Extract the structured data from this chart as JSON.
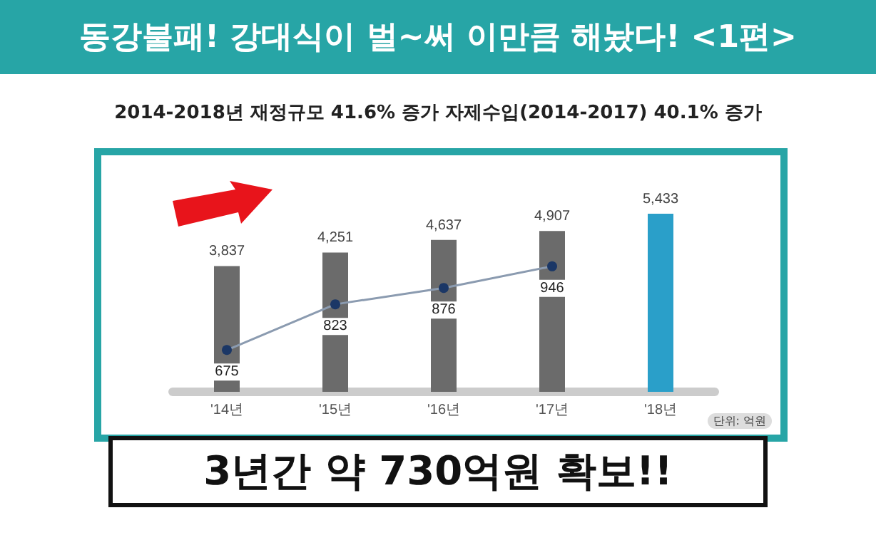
{
  "chart_data": {
    "type": "bar",
    "title": "동강불패! 강대식이 벌~써 이만큼 해놨다! <1편>",
    "subtitle": "2014-2018년 재정규모 41.6% 증가 자제수입(2014-2017) 40.1% 증가",
    "categories": [
      "'14년",
      "'15년",
      "'16년",
      "'17년",
      "'18년"
    ],
    "series": [
      {
        "colors": [
          "#6b6b6b",
          "#6b6b6b",
          "#6b6b6b",
          "#6b6b6b",
          "#2a9fc9"
        ],
        "values": [
          3837,
          4251,
          4637,
          4907,
          5433
        ],
        "value_labels": [
          "3,837",
          "4,251",
          "4,637",
          "4,907",
          "5,433"
        ]
      },
      {
        "type": "line",
        "axis": "y2",
        "color": "#1b3766",
        "values": [
          675,
          823,
          876,
          946,
          null
        ],
        "value_labels": [
          "675",
          "823",
          "876",
          "946",
          null
        ]
      }
    ],
    "tick_labels": "x",
    "marker": "circle",
    "annotations": [
      "단위: 억원",
      "3년간 약 730억원 확보!!"
    ]
  }
}
